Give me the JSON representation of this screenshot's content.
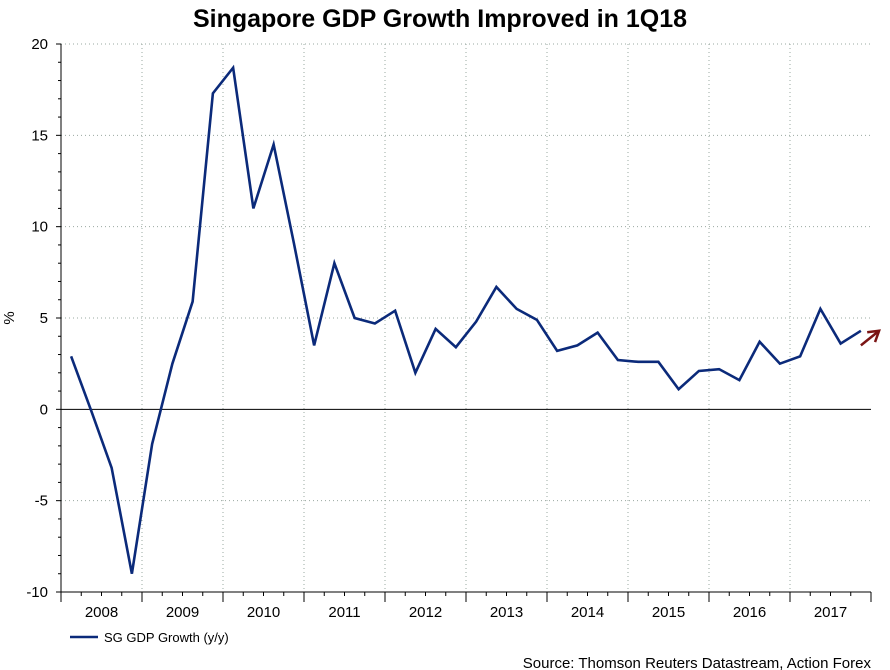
{
  "chart_data": {
    "type": "line",
    "title": "Singapore GDP Growth Improved in 1Q18",
    "ylabel": "%",
    "xlabel": "",
    "ylim": [
      -10,
      20
    ],
    "yticks": [
      20,
      15,
      10,
      5,
      0,
      -5,
      -10
    ],
    "ytick_labels": [
      "20",
      "15",
      "10",
      "5",
      "0",
      "-5",
      "-10"
    ],
    "xlim": [
      2008.0,
      2018.0
    ],
    "xtick_labels": [
      "2008",
      "2009",
      "2010",
      "2011",
      "2012",
      "2013",
      "2014",
      "2015",
      "2016",
      "2017"
    ],
    "grid": true,
    "series": [
      {
        "name": "SG GDP Growth (y/y)",
        "color": "#0b2a7a",
        "x": [
          2008.125,
          2008.375,
          2008.625,
          2008.875,
          2009.125,
          2009.375,
          2009.625,
          2009.875,
          2010.125,
          2010.375,
          2010.625,
          2010.875,
          2011.125,
          2011.375,
          2011.625,
          2011.875,
          2012.125,
          2012.375,
          2012.625,
          2012.875,
          2013.125,
          2013.375,
          2013.625,
          2013.875,
          2014.125,
          2014.375,
          2014.625,
          2014.875,
          2015.125,
          2015.375,
          2015.625,
          2015.875,
          2016.125,
          2016.375,
          2016.625,
          2016.875,
          2017.125,
          2017.375,
          2017.625,
          2017.875
        ],
        "values": [
          2.9,
          -0.1,
          -3.2,
          -9.0,
          -1.9,
          2.5,
          5.9,
          17.3,
          18.7,
          11.0,
          14.5,
          9.1,
          3.5,
          8.0,
          5.0,
          4.7,
          5.4,
          2.0,
          4.4,
          3.4,
          4.8,
          6.7,
          5.5,
          4.9,
          3.2,
          3.5,
          4.2,
          2.7,
          2.6,
          2.6,
          1.1,
          2.1,
          2.2,
          1.6,
          3.7,
          2.5,
          2.9,
          5.5,
          3.6,
          4.3
        ]
      }
    ],
    "annotations": [
      {
        "type": "arrow",
        "color": "#7b1515",
        "from": {
          "x": 2017.875,
          "y": 3.5
        },
        "to": {
          "x": 2018.1,
          "y": 4.3
        }
      }
    ],
    "legend": {
      "placement": "bottom-left",
      "entries": [
        "SG GDP Growth (y/y)"
      ]
    },
    "source": "Source: Thomson Reuters Datastream, Action Forex"
  }
}
